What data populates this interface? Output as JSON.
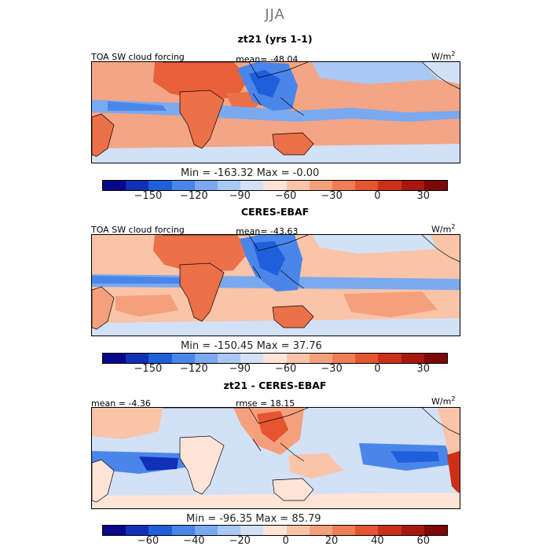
{
  "figure": {
    "title": "JJA",
    "colors": {
      "fill_low": "#ffffff",
      "land_outline": "#000000"
    }
  },
  "chart_data": [
    {
      "type": "heatmap",
      "subtitle": "zt21 (yrs 1-1)",
      "variable": "TOA SW cloud forcing",
      "stat_label": "mean=",
      "stat_value": "-48.04",
      "units": "W/m",
      "units_exp": "2",
      "min_label": "Min =",
      "min_value": "-163.32",
      "max_label": "Max =",
      "max_value": "-0.00",
      "colorbar_ticks": [
        "-150",
        "-120",
        "-90",
        "-60",
        "-30",
        "0",
        "30"
      ],
      "colorbar_colors": [
        "#08088a",
        "#1030b8",
        "#1f5fdb",
        "#4a86ea",
        "#7aa9f0",
        "#a9c8f4",
        "#d3e1f7",
        "#fde4d6",
        "#f9c4a8",
        "#f5a07c",
        "#f07d55",
        "#e45530",
        "#cc3018",
        "#a81810",
        "#7d0808"
      ]
    },
    {
      "type": "heatmap",
      "subtitle": "CERES-EBAF",
      "variable": "TOA SW cloud forcing",
      "stat_label": "mean=",
      "stat_value": "-43.63",
      "units": "W/m",
      "units_exp": "2",
      "min_label": "Min =",
      "min_value": "-150.45",
      "max_label": "Max =",
      "max_value": "37.76",
      "colorbar_ticks": [
        "-150",
        "-120",
        "-90",
        "-60",
        "-30",
        "0",
        "30"
      ],
      "colorbar_colors": [
        "#08088a",
        "#1030b8",
        "#1f5fdb",
        "#4a86ea",
        "#7aa9f0",
        "#a9c8f4",
        "#d3e1f7",
        "#fde4d6",
        "#f9c4a8",
        "#f5a07c",
        "#f07d55",
        "#e45530",
        "#cc3018",
        "#a81810",
        "#7d0808"
      ]
    },
    {
      "type": "heatmap",
      "subtitle": "zt21 - CERES-EBAF",
      "variable": "",
      "stat_label": "mean =",
      "stat_value": "-4.36",
      "stat2_label": "rmse =",
      "stat2_value": "18.15",
      "units": "W/m",
      "units_exp": "2",
      "min_label": "Min =",
      "min_value": "-96.35",
      "max_label": "Max =",
      "max_value": "85.79",
      "colorbar_ticks": [
        "-60",
        "-40",
        "-20",
        "0",
        "20",
        "40",
        "60"
      ],
      "colorbar_colors": [
        "#08088a",
        "#1030b8",
        "#1f5fdb",
        "#4a86ea",
        "#7aa9f0",
        "#a9c8f4",
        "#d3e1f7",
        "#fde4d6",
        "#f9c4a8",
        "#f5a07c",
        "#f07d55",
        "#e45530",
        "#cc3018",
        "#a81810",
        "#7d0808"
      ]
    }
  ]
}
